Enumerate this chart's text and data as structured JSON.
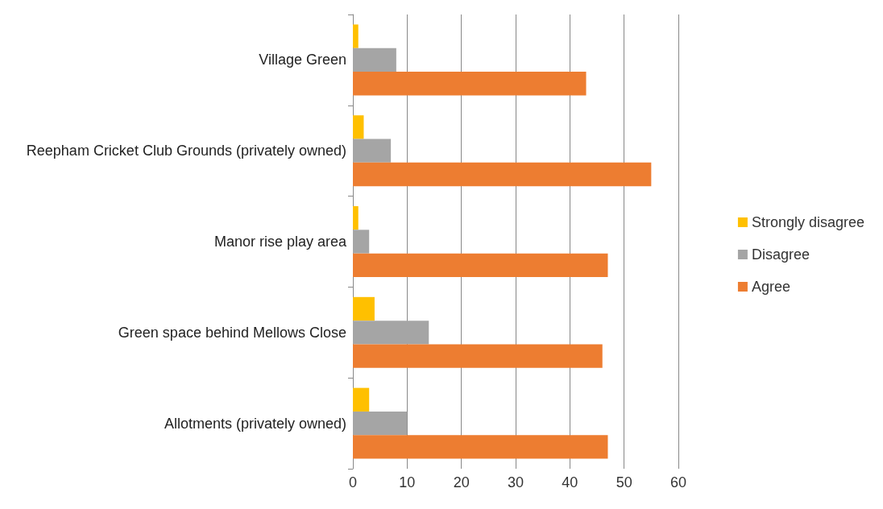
{
  "chart_data": {
    "type": "bar",
    "orientation": "horizontal",
    "categories": [
      "Village Green",
      "Reepham Cricket Club Grounds (privately owned)",
      "Manor rise play area",
      "Green space behind Mellows Close",
      "Allotments (privately owned)"
    ],
    "series": [
      {
        "name": "Strongly disagree",
        "color": "#ffc000",
        "values": [
          1,
          2,
          1,
          4,
          3
        ]
      },
      {
        "name": "Disagree",
        "color": "#a5a5a5",
        "values": [
          8,
          7,
          3,
          14,
          10
        ]
      },
      {
        "name": "Agree",
        "color": "#ed7d31",
        "values": [
          43,
          55,
          47,
          46,
          47
        ]
      }
    ],
    "xlim": [
      0,
      60
    ],
    "xticks": [
      0,
      10,
      20,
      30,
      40,
      50,
      60
    ],
    "grid": "x",
    "legend": "right"
  }
}
